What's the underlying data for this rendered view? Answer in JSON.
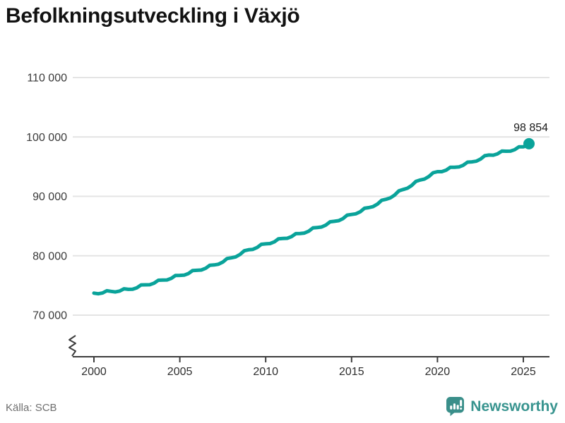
{
  "header": {
    "title": "Befolkningsutveckling i Växjö"
  },
  "footer": {
    "source": "Källa: SCB",
    "brand": "Newsworthy"
  },
  "colors": {
    "line": "#0aa39a",
    "grid": "#e4e4e4",
    "axis": "#3d3d3d",
    "y_tick_label": "#3a3a3a",
    "x_tick_label": "#2e2e2e",
    "end_label": "#1a1a1a",
    "title": "#121212",
    "source": "#6f6f6f",
    "logo": "#38948f"
  },
  "chart_data": {
    "type": "line",
    "title": "Befolkningsutveckling i Växjö",
    "xlabel": "",
    "ylabel": "",
    "legend_position": "none",
    "grid": "horizontal",
    "axis_break_bottom_left": true,
    "x_tick_years": [
      2000,
      2005,
      2010,
      2015,
      2020,
      2025
    ],
    "x_tick_labels": [
      "2000",
      "2005",
      "2010",
      "2015",
      "2020",
      "2025"
    ],
    "y_tick_values": [
      110000,
      100000,
      90000,
      80000,
      70000
    ],
    "y_tick_labels": [
      "110 000",
      "100 000",
      "90 000",
      "80 000",
      "70 000"
    ],
    "ylim": [
      70000,
      110000
    ],
    "xlim": [
      2000,
      2025.33
    ],
    "end_label": "98 854",
    "final_point": {
      "year": 2025.33,
      "value": 98854
    },
    "annual_values": [
      [
        2000,
        73700
      ],
      [
        2001,
        74000
      ],
      [
        2002,
        74350
      ],
      [
        2003,
        75100
      ],
      [
        2004,
        75900
      ],
      [
        2005,
        76700
      ],
      [
        2006,
        77550
      ],
      [
        2007,
        78450
      ],
      [
        2008,
        79650
      ],
      [
        2009,
        81000
      ],
      [
        2010,
        82000
      ],
      [
        2011,
        82900
      ],
      [
        2012,
        83750
      ],
      [
        2013,
        84750
      ],
      [
        2014,
        85800
      ],
      [
        2015,
        86950
      ],
      [
        2016,
        88100
      ],
      [
        2017,
        89500
      ],
      [
        2018,
        91150
      ],
      [
        2019,
        92750
      ],
      [
        2020,
        94150
      ],
      [
        2021,
        94900
      ],
      [
        2022,
        95800
      ],
      [
        2023,
        96950
      ],
      [
        2024,
        97600
      ],
      [
        2025,
        98350
      ]
    ],
    "seasonal_offsets": [
      0,
      -180,
      -120,
      180
    ]
  }
}
